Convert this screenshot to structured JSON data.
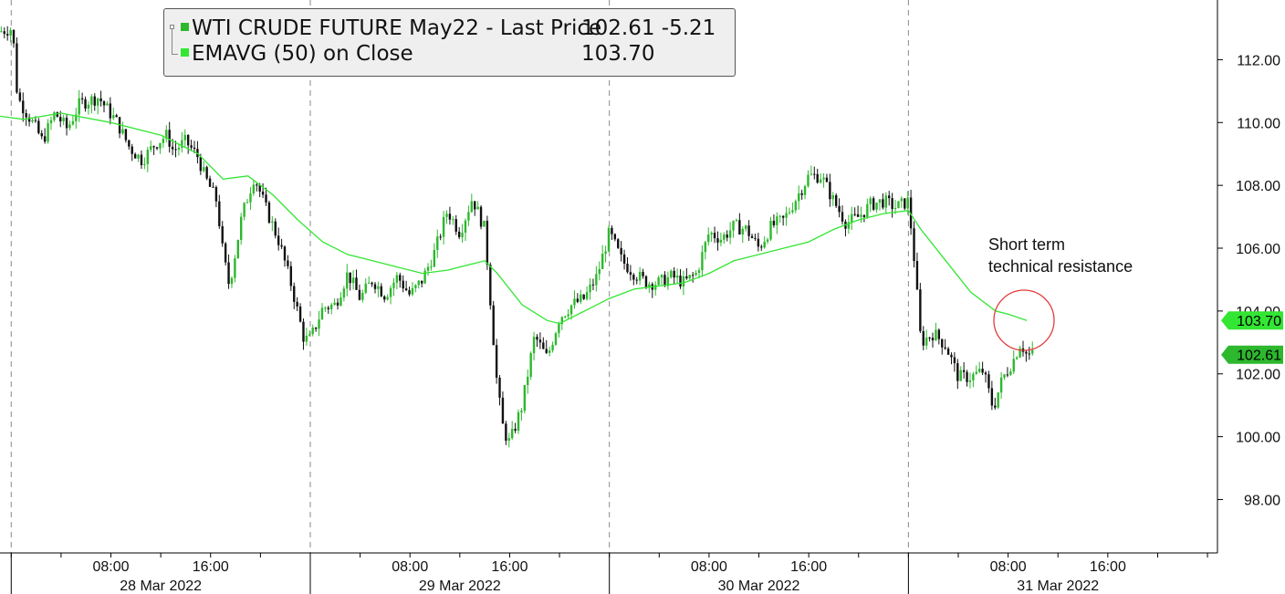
{
  "legend": {
    "series1_label": "WTI CRUDE FUTURE May22 - Last Price",
    "series1_value": "102.61 -5.21",
    "series2_label": "EMAVG (50)  on Close",
    "series2_value": "103.70",
    "series1_color": "#2db82d",
    "series2_color": "#33e633"
  },
  "annotation": {
    "line1": "Short term",
    "line2": "technical resistance",
    "circle_color": "#e23b3b"
  },
  "chart_data": {
    "type": "candlestick",
    "title": "",
    "series": [
      {
        "name": "WTI CRUDE FUTURE May22 - Last Price",
        "last": 102.61,
        "change": -5.21,
        "color": "#2db82d"
      },
      {
        "name": "EMAVG (50)  on Close",
        "last": 103.7,
        "color": "#33e633"
      }
    ],
    "y_ticks": [
      "112.00",
      "110.00",
      "108.00",
      "106.00",
      "104.00",
      "102.00",
      "100.00",
      "98.00"
    ],
    "y_tick_values": [
      112,
      110,
      108,
      106,
      104,
      102,
      100,
      98
    ],
    "ylim": [
      96.3,
      113.9
    ],
    "x_ticks": [
      {
        "h": 8,
        "label": "08:00"
      },
      {
        "h": 16,
        "label": "16:00"
      },
      {
        "h": 32,
        "label": "08:00"
      },
      {
        "h": 40,
        "label": "16:00"
      },
      {
        "h": 56,
        "label": "08:00"
      },
      {
        "h": 64,
        "label": "16:00"
      },
      {
        "h": 80,
        "label": "08:00"
      },
      {
        "h": 88,
        "label": "16:00"
      }
    ],
    "dates": [
      {
        "h": 12,
        "label": "28 Mar 2022"
      },
      {
        "h": 36,
        "label": "29 Mar 2022"
      },
      {
        "h": 60,
        "label": "30 Mar 2022"
      },
      {
        "h": 84,
        "label": "31 Mar 2022"
      }
    ],
    "day_separators": [
      0,
      24,
      48,
      72
    ],
    "xlim": [
      -0.9,
      96.8
    ],
    "last_price_tag": "102.61",
    "ema_tag": "103.70",
    "price_path": [
      [
        -0.9,
        112.9
      ],
      [
        0.1,
        113.0
      ],
      [
        0.5,
        110.8
      ],
      [
        2.0,
        109.8
      ],
      [
        2.5,
        109.4
      ],
      [
        3.5,
        110.3
      ],
      [
        4.5,
        109.8
      ],
      [
        5.5,
        110.6
      ],
      [
        7.0,
        110.8
      ],
      [
        8.5,
        110.0
      ],
      [
        9.5,
        109.2
      ],
      [
        10.5,
        108.8
      ],
      [
        11.5,
        109.3
      ],
      [
        12.5,
        109.6
      ],
      [
        13.0,
        109.1
      ],
      [
        14.0,
        109.4
      ],
      [
        15.0,
        108.9
      ],
      [
        15.5,
        108.3
      ],
      [
        16.5,
        107.5
      ],
      [
        17.0,
        105.8
      ],
      [
        17.5,
        104.8
      ],
      [
        18.5,
        107.0
      ],
      [
        19.5,
        108.3
      ],
      [
        20.5,
        107.2
      ],
      [
        21.5,
        106.2
      ],
      [
        22.5,
        104.8
      ],
      [
        23.5,
        103.1
      ],
      [
        24.0,
        103.1
      ],
      [
        25.0,
        104.1
      ],
      [
        26.0,
        104.2
      ],
      [
        27.0,
        105.2
      ],
      [
        28.0,
        104.4
      ],
      [
        29.0,
        105.0
      ],
      [
        30.0,
        104.5
      ],
      [
        31.0,
        105.1
      ],
      [
        32.0,
        104.5
      ],
      [
        33.0,
        105.0
      ],
      [
        34.0,
        105.9
      ],
      [
        35.0,
        107.2
      ],
      [
        36.0,
        106.5
      ],
      [
        37.0,
        107.6
      ],
      [
        38.0,
        106.6
      ],
      [
        39.0,
        101.6
      ],
      [
        39.5,
        100.2
      ],
      [
        40.0,
        99.8
      ],
      [
        41.0,
        101.0
      ],
      [
        42.0,
        103.2
      ],
      [
        43.0,
        102.5
      ],
      [
        44.0,
        103.8
      ],
      [
        45.0,
        104.2
      ],
      [
        46.0,
        104.4
      ],
      [
        47.0,
        105.1
      ],
      [
        48.0,
        106.5
      ],
      [
        49.0,
        105.6
      ],
      [
        50.0,
        105.2
      ],
      [
        51.0,
        104.9
      ],
      [
        52.0,
        104.9
      ],
      [
        53.0,
        105.1
      ],
      [
        54.0,
        104.9
      ],
      [
        55.0,
        105.2
      ],
      [
        56.0,
        106.5
      ],
      [
        57.0,
        106.3
      ],
      [
        58.0,
        106.7
      ],
      [
        59.0,
        106.6
      ],
      [
        60.0,
        106.0
      ],
      [
        61.0,
        106.7
      ],
      [
        62.0,
        106.9
      ],
      [
        63.0,
        107.6
      ],
      [
        64.0,
        108.3
      ],
      [
        65.0,
        108.3
      ],
      [
        66.0,
        107.5
      ],
      [
        67.0,
        106.8
      ],
      [
        68.0,
        107.0
      ],
      [
        69.0,
        107.4
      ],
      [
        70.0,
        107.5
      ],
      [
        71.0,
        107.3
      ],
      [
        72.0,
        107.5
      ],
      [
        72.5,
        105.5
      ],
      [
        73.0,
        103.0
      ],
      [
        74.0,
        103.3
      ],
      [
        75.0,
        102.9
      ],
      [
        76.0,
        101.9
      ],
      [
        77.0,
        101.9
      ],
      [
        78.0,
        102.1
      ],
      [
        78.8,
        100.9
      ],
      [
        79.5,
        101.8
      ],
      [
        80.5,
        102.5
      ],
      [
        81.0,
        103.0
      ],
      [
        81.5,
        102.6
      ],
      [
        82.0,
        102.61
      ]
    ],
    "ema_path": [
      [
        -0.9,
        110.2
      ],
      [
        1,
        110.1
      ],
      [
        4,
        110.3
      ],
      [
        8,
        110.0
      ],
      [
        12,
        109.6
      ],
      [
        15,
        109.0
      ],
      [
        17,
        108.2
      ],
      [
        19,
        108.3
      ],
      [
        21,
        107.7
      ],
      [
        23,
        106.9
      ],
      [
        25,
        106.2
      ],
      [
        27,
        105.8
      ],
      [
        29,
        105.6
      ],
      [
        31,
        105.4
      ],
      [
        33,
        105.2
      ],
      [
        35,
        105.3
      ],
      [
        37,
        105.5
      ],
      [
        38,
        105.6
      ],
      [
        39,
        105.2
      ],
      [
        41,
        104.2
      ],
      [
        43,
        103.7
      ],
      [
        44,
        103.6
      ],
      [
        46,
        104.0
      ],
      [
        48,
        104.4
      ],
      [
        50,
        104.7
      ],
      [
        52,
        104.8
      ],
      [
        54,
        104.9
      ],
      [
        56,
        105.2
      ],
      [
        58,
        105.6
      ],
      [
        60,
        105.8
      ],
      [
        62,
        106.0
      ],
      [
        64,
        106.2
      ],
      [
        66,
        106.6
      ],
      [
        68,
        106.9
      ],
      [
        70,
        107.1
      ],
      [
        72,
        107.2
      ],
      [
        73,
        106.6
      ],
      [
        75,
        105.6
      ],
      [
        77,
        104.6
      ],
      [
        79,
        104.0
      ],
      [
        80,
        103.9
      ],
      [
        81.5,
        103.7
      ]
    ]
  }
}
